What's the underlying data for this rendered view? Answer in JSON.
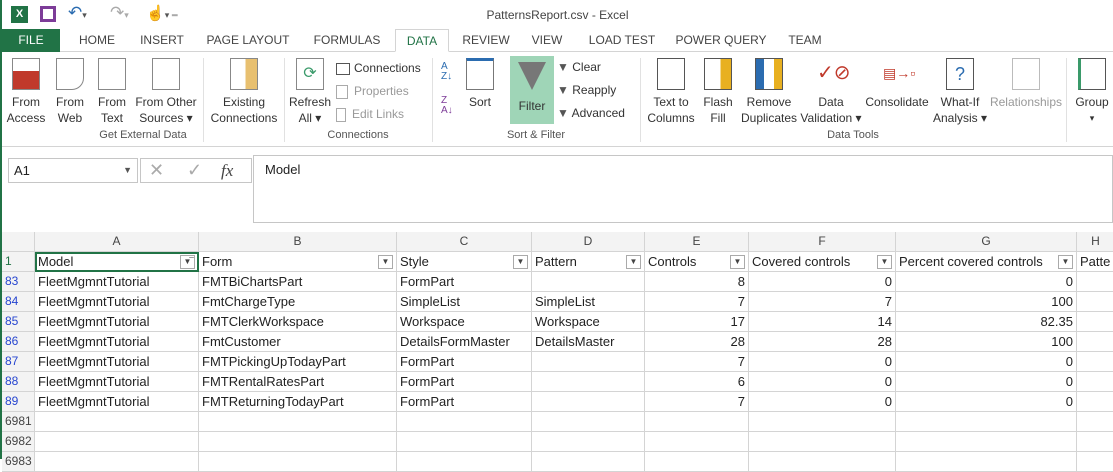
{
  "window": {
    "title": "PatternsReport.csv - Excel"
  },
  "tabs": [
    "FILE",
    "HOME",
    "INSERT",
    "PAGE LAYOUT",
    "FORMULAS",
    "DATA",
    "REVIEW",
    "VIEW",
    "LOAD TEST",
    "POWER QUERY",
    "TEAM"
  ],
  "active_tab": "DATA",
  "ribbon": {
    "get_external": {
      "group": "Get External Data",
      "from_access": [
        "From",
        "Access"
      ],
      "from_web": [
        "From",
        "Web"
      ],
      "from_text": [
        "From",
        "Text"
      ],
      "from_other": [
        "From Other",
        "Sources ▾"
      ],
      "existing": [
        "Existing",
        "Connections"
      ]
    },
    "connections": {
      "group": "Connections",
      "refresh": [
        "Refresh",
        "All ▾"
      ],
      "connections": "Connections",
      "properties": "Properties",
      "edit_links": "Edit Links"
    },
    "sort_filter": {
      "group": "Sort & Filter",
      "sort": "Sort",
      "filter": "Filter",
      "clear": "Clear",
      "reapply": "Reapply",
      "advanced": "Advanced"
    },
    "data_tools": {
      "group": "Data Tools",
      "text_to_columns": [
        "Text to",
        "Columns"
      ],
      "flash_fill": [
        "Flash",
        "Fill"
      ],
      "remove_duplicates": [
        "Remove",
        "Duplicates"
      ],
      "data_validation": [
        "Data",
        "Validation ▾"
      ],
      "consolidate": "Consolidate",
      "what_if": [
        "What-If",
        "Analysis ▾"
      ],
      "relationships": "Relationships"
    },
    "outline": {
      "group_btn": "Group"
    }
  },
  "formula_bar": {
    "name_box": "A1",
    "fx": "fx",
    "value": "Model"
  },
  "sheet": {
    "columns": [
      "A",
      "B",
      "C",
      "D",
      "E",
      "F",
      "G",
      "H"
    ],
    "headers": [
      "Model",
      "Form",
      "Style",
      "Pattern",
      "Controls",
      "Covered controls",
      "Percent covered controls",
      "Patte"
    ],
    "header_row": "1",
    "rows": [
      {
        "n": "83",
        "c": [
          "FleetMgmntTutorial",
          "FMTBiChartsPart",
          "FormPart",
          "",
          "8",
          "0",
          "0"
        ]
      },
      {
        "n": "84",
        "c": [
          "FleetMgmntTutorial",
          "FmtChargeType",
          "SimpleList",
          "SimpleList",
          "7",
          "7",
          "100"
        ]
      },
      {
        "n": "85",
        "c": [
          "FleetMgmntTutorial",
          "FMTClerkWorkspace",
          "Workspace",
          "Workspace",
          "17",
          "14",
          "82.35"
        ]
      },
      {
        "n": "86",
        "c": [
          "FleetMgmntTutorial",
          "FmtCustomer",
          "DetailsFormMaster",
          "DetailsMaster",
          "28",
          "28",
          "100"
        ]
      },
      {
        "n": "87",
        "c": [
          "FleetMgmntTutorial",
          "FMTPickingUpTodayPart",
          "FormPart",
          "",
          "7",
          "0",
          "0"
        ]
      },
      {
        "n": "88",
        "c": [
          "FleetMgmntTutorial",
          "FMTRentalRatesPart",
          "FormPart",
          "",
          "6",
          "0",
          "0"
        ]
      },
      {
        "n": "89",
        "c": [
          "FleetMgmntTutorial",
          "FMTReturningTodayPart",
          "FormPart",
          "",
          "7",
          "0",
          "0"
        ]
      }
    ],
    "empty_rows": [
      "6981",
      "6982",
      "6983"
    ]
  }
}
